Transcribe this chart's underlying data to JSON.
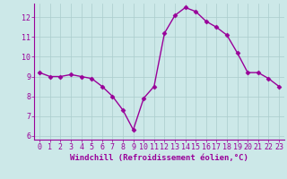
{
  "hours": [
    0,
    1,
    2,
    3,
    4,
    5,
    6,
    7,
    8,
    9,
    10,
    11,
    12,
    13,
    14,
    15,
    16,
    17,
    18,
    19,
    20,
    21,
    22,
    23
  ],
  "values": [
    9.2,
    9.0,
    9.0,
    9.1,
    9.0,
    8.9,
    8.5,
    8.0,
    7.3,
    6.3,
    7.9,
    8.5,
    11.2,
    12.1,
    12.5,
    12.3,
    11.8,
    11.5,
    11.1,
    10.2,
    9.2,
    9.2,
    8.9,
    8.5
  ],
  "line_color": "#990099",
  "marker": "D",
  "marker_size": 2.5,
  "bg_color": "#cce8e8",
  "grid_color": "#aacccc",
  "xlabel": "Windchill (Refroidissement éolien,°C)",
  "xlabel_color": "#990099",
  "tick_color": "#990099",
  "ylim": [
    5.8,
    12.7
  ],
  "xlim": [
    -0.5,
    23.5
  ],
  "yticks": [
    6,
    7,
    8,
    9,
    10,
    11,
    12
  ],
  "xticks": [
    0,
    1,
    2,
    3,
    4,
    5,
    6,
    7,
    8,
    9,
    10,
    11,
    12,
    13,
    14,
    15,
    16,
    17,
    18,
    19,
    20,
    21,
    22,
    23
  ],
  "spine_color": "#990099",
  "label_fontsize": 6.5,
  "tick_fontsize": 6.0,
  "linewidth": 1.0
}
